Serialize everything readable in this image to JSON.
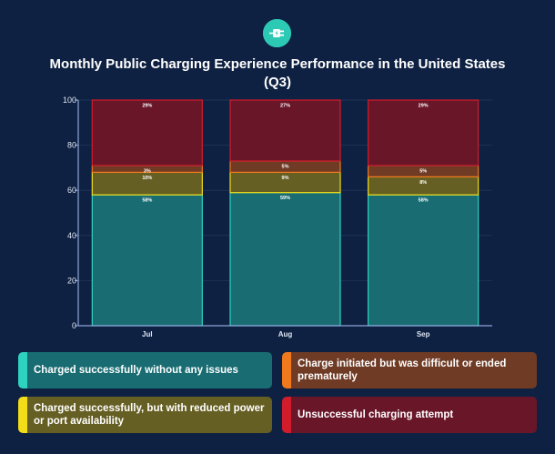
{
  "title": "Monthly Public Charging Experience Performance in the United States (Q3)",
  "logo_icon": "ev-plug-icon",
  "colors": {
    "background": "#0e2142",
    "grid": "#1e3257",
    "axis": "#8fa4d9"
  },
  "chart_data": {
    "type": "bar",
    "stacked": true,
    "title": "Monthly Public Charging Experience Performance in the United States (Q3)",
    "categories": [
      "Jul",
      "Aug",
      "Sep"
    ],
    "ylim": [
      0,
      100
    ],
    "yticks": [
      0,
      20,
      40,
      60,
      80,
      100
    ],
    "grid": true,
    "legend_position": "bottom",
    "series": [
      {
        "name": "Charged successfully without any issues",
        "values": [
          58,
          59,
          58
        ],
        "labels": [
          "58%",
          "59%",
          "58%"
        ],
        "fill": "#186c72",
        "stroke": "#2ed3bf"
      },
      {
        "name": "Charged successfully, but with reduced power or port availability",
        "values": [
          10,
          9,
          8
        ],
        "labels": [
          "10%",
          "9%",
          "8%"
        ],
        "fill": "#665f24",
        "stroke": "#f2dd18"
      },
      {
        "name": "Charge initiated but was difficult or ended prematurely",
        "values": [
          3,
          5,
          5
        ],
        "labels": [
          "3%",
          "5%",
          "5%"
        ],
        "fill": "#6f3b25",
        "stroke": "#f0781d"
      },
      {
        "name": "Unsuccessful charging attempt",
        "values": [
          29,
          27,
          29
        ],
        "labels": [
          "29%",
          "27%",
          "29%"
        ],
        "fill": "#6a1629",
        "stroke": "#d11c2c"
      }
    ]
  },
  "legend": [
    {
      "label": "Charged successfully without any issues",
      "swatch": "#2ed3bf",
      "fill": "#186c72"
    },
    {
      "label": "Charge initiated but was difficult or ended prematurely",
      "swatch": "#f0781d",
      "fill": "#6f3b25"
    },
    {
      "label": "Charged successfully, but with reduced power or port availability",
      "swatch": "#f2dd18",
      "fill": "#665f24"
    },
    {
      "label": "Unsuccessful charging attempt",
      "swatch": "#d11c2c",
      "fill": "#6a1629"
    }
  ]
}
